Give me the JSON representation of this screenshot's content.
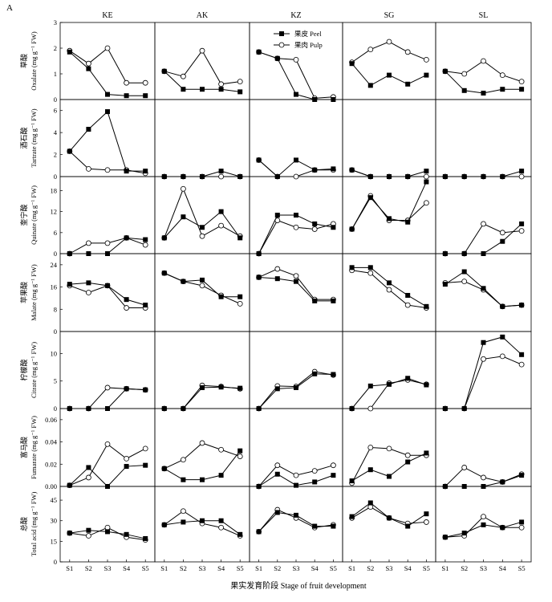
{
  "figure": {
    "panel_label": "A",
    "xlabel": "果实发育阶段 Stage of fruit development",
    "columns": [
      "KE",
      "AK",
      "KZ",
      "SG",
      "SL"
    ],
    "legend": {
      "peel": "果皮 Peel",
      "pulp": "果肉 Pulp",
      "placement": "top-right of KZ oxalate panel"
    },
    "colors": {
      "line": "#000000",
      "peel_marker": "#000000",
      "pulp_marker": "#ffffff"
    }
  },
  "chart_data": {
    "type": "line",
    "x": [
      "S1",
      "S2",
      "S3",
      "S4",
      "S5"
    ],
    "grid": false,
    "rows": [
      {
        "cn": "草酸",
        "en": "Oxalate (mg g⁻¹ FW)",
        "ylim": [
          0,
          3
        ],
        "ticks": [
          "0",
          "1",
          "2",
          "3"
        ],
        "cultivars": {
          "KE": {
            "peel": [
              1.85,
              1.2,
              0.2,
              0.15,
              0.15
            ],
            "pulp": [
              1.9,
              1.4,
              2.0,
              0.65,
              0.65
            ]
          },
          "AK": {
            "peel": [
              1.1,
              0.4,
              0.4,
              0.4,
              0.3
            ],
            "pulp": [
              1.1,
              0.9,
              1.9,
              0.6,
              0.7
            ]
          },
          "KZ": {
            "peel": [
              1.85,
              1.6,
              0.2,
              0.0,
              0.0
            ],
            "pulp": [
              1.85,
              1.6,
              1.55,
              0.05,
              0.1
            ]
          },
          "SG": {
            "peel": [
              1.4,
              0.55,
              0.95,
              0.6,
              0.95
            ],
            "pulp": [
              1.45,
              1.95,
              2.25,
              1.85,
              1.55
            ]
          },
          "SL": {
            "peel": [
              1.1,
              0.35,
              0.25,
              0.4,
              0.4
            ],
            "pulp": [
              1.1,
              1.0,
              1.5,
              0.95,
              0.7
            ]
          }
        }
      },
      {
        "cn": "酒石酸",
        "en": "Tartrate (mg g⁻¹ FW)",
        "ylim": [
          0,
          7
        ],
        "ticks": [
          "0",
          "2",
          "4",
          "6"
        ],
        "cultivars": {
          "KE": {
            "peel": [
              2.3,
              4.3,
              5.9,
              0.5,
              0.5
            ],
            "pulp": [
              2.3,
              0.7,
              0.6,
              0.6,
              0.3
            ]
          },
          "AK": {
            "peel": [
              0,
              0,
              0,
              0.5,
              0
            ],
            "pulp": [
              0,
              0,
              0,
              0,
              0
            ]
          },
          "KZ": {
            "peel": [
              1.5,
              0,
              1.5,
              0.6,
              0.7
            ],
            "pulp": [
              1.5,
              0,
              0,
              0.6,
              0.6
            ]
          },
          "SG": {
            "peel": [
              0.6,
              0,
              0,
              0,
              0.5
            ],
            "pulp": [
              0.6,
              0,
              0,
              0,
              0
            ]
          },
          "SL": {
            "peel": [
              0,
              0,
              0,
              0,
              0.5
            ],
            "pulp": [
              0,
              0,
              0,
              0,
              0
            ]
          }
        }
      },
      {
        "cn": "奎宁酸",
        "en": "Quinate (mg g⁻¹ FW)",
        "ylim": [
          0,
          22
        ],
        "ticks": [
          "0",
          "6",
          "12",
          "18"
        ],
        "cultivars": {
          "KE": {
            "peel": [
              0,
              0,
              0,
              4.5,
              4.0
            ],
            "pulp": [
              0,
              3.0,
              3.0,
              4.5,
              2.5
            ]
          },
          "AK": {
            "peel": [
              4.5,
              10.5,
              7.5,
              12.0,
              4.5
            ],
            "pulp": [
              4.5,
              18.5,
              5.0,
              8.0,
              5.0
            ]
          },
          "KZ": {
            "peel": [
              0,
              11.0,
              11.0,
              8.5,
              7.5
            ],
            "pulp": [
              0,
              9.5,
              7.5,
              7.0,
              8.5
            ]
          },
          "SG": {
            "peel": [
              7.0,
              16.0,
              10.0,
              9.0,
              20.5
            ],
            "pulp": [
              7.0,
              16.5,
              9.5,
              9.5,
              14.5
            ]
          },
          "SL": {
            "peel": [
              0,
              0,
              0,
              3.5,
              8.5
            ],
            "pulp": [
              0,
              0,
              8.5,
              6.0,
              6.5
            ]
          }
        }
      },
      {
        "cn": "苹果酸",
        "en": "Malate (mg g⁻¹ FW)",
        "ylim": [
          0,
          28
        ],
        "ticks": [
          "0",
          "8",
          "16",
          "24"
        ],
        "cultivars": {
          "KE": {
            "peel": [
              17.0,
              17.5,
              16.5,
              11.5,
              9.5
            ],
            "pulp": [
              16.5,
              14.0,
              16.5,
              8.5,
              8.5
            ]
          },
          "AK": {
            "peel": [
              21.0,
              18.0,
              18.5,
              12.5,
              12.5
            ],
            "pulp": [
              21.0,
              18.0,
              16.5,
              13.0,
              10.0
            ]
          },
          "KZ": {
            "peel": [
              19.5,
              19.0,
              18.0,
              11.0,
              11.0
            ],
            "pulp": [
              19.5,
              22.5,
              20.0,
              11.5,
              11.5
            ]
          },
          "SG": {
            "peel": [
              23.0,
              23.0,
              17.5,
              13.0,
              9.0
            ],
            "pulp": [
              22.0,
              21.0,
              15.0,
              9.5,
              8.5
            ]
          },
          "SL": {
            "peel": [
              17.0,
              21.5,
              15.5,
              9.0,
              9.5
            ],
            "pulp": [
              17.5,
              18.0,
              15.0,
              9.0,
              9.5
            ]
          }
        }
      },
      {
        "cn": "柠檬酸",
        "en": "Citrate (mg g⁻¹ FW)",
        "ylim": [
          0,
          14
        ],
        "ticks": [
          "0",
          "5",
          "10"
        ],
        "cultivars": {
          "KE": {
            "peel": [
              0,
              0,
              0,
              3.6,
              3.4
            ],
            "pulp": [
              0,
              0,
              3.8,
              3.6,
              3.4
            ]
          },
          "AK": {
            "peel": [
              0,
              0,
              3.8,
              3.9,
              3.7
            ],
            "pulp": [
              0,
              0,
              4.2,
              4.0,
              3.6
            ]
          },
          "KZ": {
            "peel": [
              0,
              3.6,
              3.8,
              6.3,
              6.2
            ],
            "pulp": [
              0,
              4.1,
              4.0,
              6.7,
              6.1
            ]
          },
          "SG": {
            "peel": [
              0,
              4.1,
              4.4,
              5.5,
              4.3
            ],
            "pulp": [
              0,
              0,
              4.6,
              5.2,
              4.4
            ]
          },
          "SL": {
            "peel": [
              0,
              0,
              12.0,
              13.0,
              9.8
            ],
            "pulp": [
              0,
              0,
              9.0,
              9.5,
              8.0
            ]
          }
        }
      },
      {
        "cn": "富马酸",
        "en": "Fumarate (mg g⁻¹ FW)",
        "ylim": [
          0,
          0.07
        ],
        "ticks": [
          "0.00",
          "0.02",
          "0.04",
          "0.06"
        ],
        "cultivars": {
          "KE": {
            "peel": [
              0.001,
              0.017,
              0.0,
              0.018,
              0.019
            ],
            "pulp": [
              0.001,
              0.008,
              0.038,
              0.025,
              0.034
            ]
          },
          "AK": {
            "peel": [
              0.016,
              0.006,
              0.006,
              0.01,
              0.032
            ],
            "pulp": [
              0.016,
              0.024,
              0.039,
              0.033,
              0.027
            ]
          },
          "KZ": {
            "peel": [
              0.0,
              0.011,
              0.001,
              0.004,
              0.01
            ],
            "pulp": [
              0.0,
              0.019,
              0.01,
              0.014,
              0.019
            ]
          },
          "SG": {
            "peel": [
              0.005,
              0.015,
              0.009,
              0.022,
              0.03
            ],
            "pulp": [
              0.003,
              0.035,
              0.034,
              0.028,
              0.028
            ]
          },
          "SL": {
            "peel": [
              0.0,
              0.0,
              0.0,
              0.004,
              0.01
            ],
            "pulp": [
              0.0,
              0.017,
              0.008,
              0.004,
              0.011
            ]
          }
        }
      },
      {
        "cn": "总酸",
        "en": "Total acid (mg g⁻¹ FW)",
        "ylim": [
          0,
          55
        ],
        "ticks": [
          "0",
          "15",
          "30",
          "45"
        ],
        "cultivars": {
          "KE": {
            "peel": [
              21,
              23,
              22,
              20,
              17
            ],
            "pulp": [
              21,
              19,
              25,
              18,
              16
            ]
          },
          "AK": {
            "peel": [
              27,
              29,
              30,
              30,
              20
            ],
            "pulp": [
              27,
              37,
              28,
              25,
              19
            ]
          },
          "KZ": {
            "peel": [
              22,
              36,
              34,
              26,
              26
            ],
            "pulp": [
              22,
              38,
              32,
              25,
              27
            ]
          },
          "SG": {
            "peel": [
              33,
              43,
              32,
              26,
              35
            ],
            "pulp": [
              32,
              40,
              32,
              28,
              29
            ]
          },
          "SL": {
            "peel": [
              18,
              21,
              27,
              25,
              29
            ],
            "pulp": [
              18,
              19,
              33,
              25,
              25
            ]
          }
        }
      }
    ]
  }
}
